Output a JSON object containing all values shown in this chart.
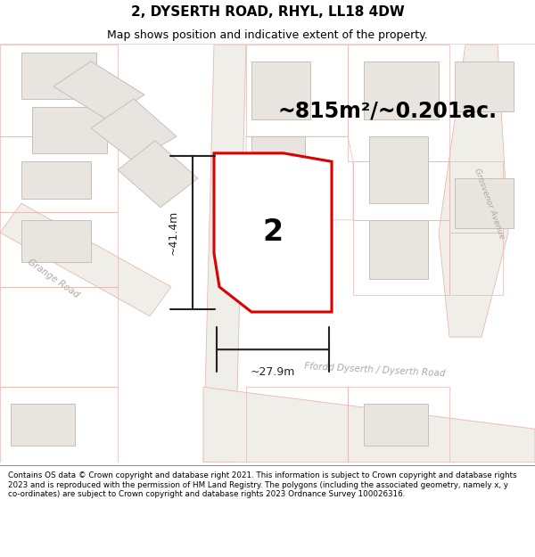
{
  "title": "2, DYSERTH ROAD, RHYL, LL18 4DW",
  "subtitle": "Map shows position and indicative extent of the property.",
  "area_label": "~815m²/~0.201ac.",
  "plot_number": "2",
  "dim_vertical": "~41.4m",
  "dim_horizontal": "~27.9m",
  "footer": "Contains OS data © Crown copyright and database right 2021. This information is subject to Crown copyright and database rights 2023 and is reproduced with the permission of HM Land Registry. The polygons (including the associated geometry, namely x, y co-ordinates) are subject to Crown copyright and database rights 2023 Ordnance Survey 100026316.",
  "map_bg": "#f7f7f5",
  "road_fill": "#f0eeeb",
  "road_line": "#e8b8b0",
  "building_fill": "#e8e4e0",
  "building_edge": "#c8c0b8",
  "plot_fill": "#ffffff",
  "plot_edge": "#dd0000",
  "label_color": "#b0a8a0",
  "dim_color": "#222222",
  "title_size": 11,
  "subtitle_size": 9,
  "area_size": 17,
  "plot_num_size": 24,
  "road_label_size": 7.5,
  "dim_label_size": 9,
  "footer_size": 6.3
}
